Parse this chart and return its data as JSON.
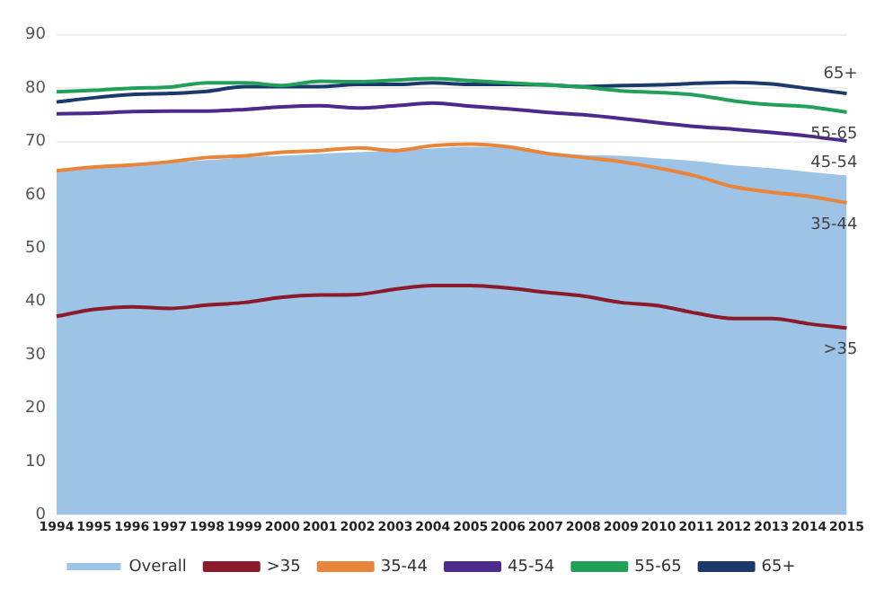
{
  "chart_data": {
    "type": "line",
    "categories": [
      "1994",
      "1995",
      "1996",
      "1997",
      "1998",
      "1999",
      "2000",
      "2001",
      "2002",
      "2003",
      "2004",
      "2005",
      "2006",
      "2007",
      "2008",
      "2009",
      "2010",
      "2011",
      "2012",
      "2013",
      "2014",
      "2015"
    ],
    "series": [
      {
        "name": "Overall",
        "type": "area",
        "color": "#9dc3e6",
        "values": [
          64.5,
          65,
          65.5,
          66,
          66.5,
          67,
          67.3,
          67.7,
          68,
          68.3,
          68.7,
          69,
          68.8,
          68,
          67.5,
          67.3,
          66.8,
          66.3,
          65.5,
          65,
          64.3,
          63.6
        ]
      },
      {
        "name": ">35",
        "color": "#8b1a2b",
        "values": [
          37.2,
          38.5,
          39,
          38.7,
          39.3,
          39.8,
          40.8,
          41.2,
          41.3,
          42.3,
          43,
          43,
          42.5,
          41.7,
          41,
          39.8,
          39.2,
          37.8,
          36.8,
          36.8,
          35.8,
          35
        ]
      },
      {
        "name": "35-44",
        "color": "#e8853a",
        "values": [
          64.5,
          65.2,
          65.6,
          66.2,
          67,
          67.3,
          68,
          68.3,
          68.8,
          68.3,
          69.2,
          69.5,
          69,
          67.8,
          67,
          66.2,
          65,
          63.5,
          61.5,
          60.5,
          59.7,
          58.5
        ]
      },
      {
        "name": "45-54",
        "color": "#4b2a8c",
        "values": [
          75.2,
          75.3,
          75.6,
          75.7,
          75.7,
          76,
          76.5,
          76.7,
          76.3,
          76.7,
          77.2,
          76.6,
          76.1,
          75.5,
          75,
          74.3,
          73.5,
          72.8,
          72.3,
          71.7,
          71,
          70.1
        ]
      },
      {
        "name": "55-65",
        "color": "#22a05a",
        "values": [
          79.3,
          79.6,
          80,
          80.2,
          81,
          81,
          80.5,
          81.3,
          81.2,
          81.5,
          81.8,
          81.4,
          81,
          80.6,
          80.2,
          79.5,
          79.2,
          78.7,
          77.6,
          76.9,
          76.5,
          75.5
        ]
      },
      {
        "name": "65+",
        "color": "#1b3a6b",
        "values": [
          77.4,
          78.2,
          78.8,
          79,
          79.4,
          80.3,
          80.3,
          80.3,
          80.7,
          80.7,
          81,
          80.7,
          80.7,
          80.6,
          80.3,
          80.5,
          80.6,
          80.9,
          81.1,
          80.8,
          79.9,
          79
        ]
      }
    ],
    "ylim": [
      0,
      90
    ],
    "yticks": [
      0,
      10,
      20,
      30,
      40,
      50,
      60,
      70,
      80,
      90
    ],
    "grid": "y",
    "legend": "bottom"
  }
}
